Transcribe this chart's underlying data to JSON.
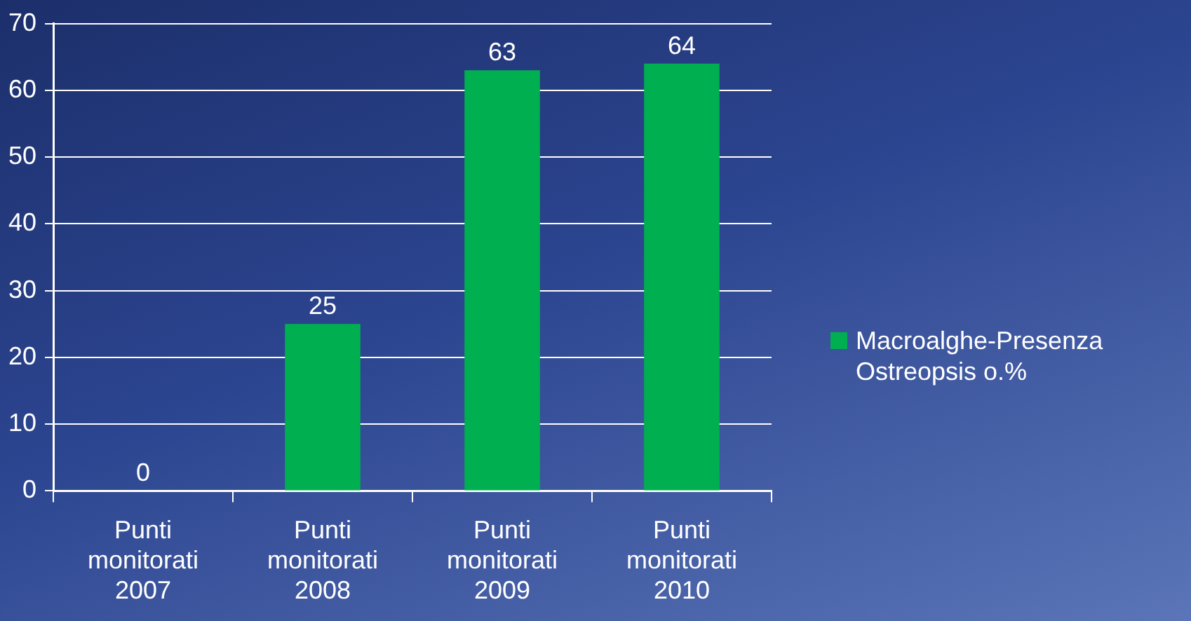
{
  "chart_data": {
    "type": "bar",
    "categories": [
      "Punti monitorati 2007",
      "Punti monitorati 2008",
      "Punti monitorati 2009",
      "Punti monitorati 2010"
    ],
    "series": [
      {
        "name": "Macroalghe-Presenza Ostreopsis o.%",
        "color": "#00b050",
        "values": [
          0,
          25,
          63,
          64
        ]
      }
    ],
    "ylim": [
      0,
      70
    ],
    "yticks": [
      0,
      10,
      20,
      30,
      40,
      50,
      60,
      70
    ],
    "grid": "y",
    "legend": "right",
    "data_labels": true
  }
}
